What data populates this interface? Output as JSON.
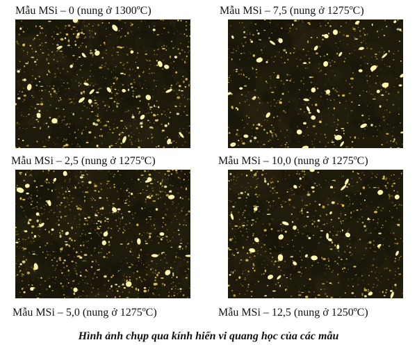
{
  "samples": [
    {
      "label": "Mẫu MSi – 0 (nung ở 1300ºC)"
    },
    {
      "label": "Mẫu MSi – 7,5 (nung ở 1275ºC)"
    },
    {
      "label": "Mẫu MSi – 2,5 (nung ở 1275ºC)"
    },
    {
      "label": "Mẫu MSi – 10,0 (nung ở 1275ºC)"
    },
    {
      "label": "Mẫu MSi – 5,0 (nung ở 1275ºC)"
    },
    {
      "label": "Mẫu MSi – 12,5 (nung ở 1250ºC)"
    }
  ],
  "caption": "Hình ảnh chụp qua kính hiển vi quang học của các mẫu",
  "colors": {
    "background": "#1d1a0c",
    "grain_bright": "#fff6b0",
    "grain_mid": "#e8c84a",
    "grain_dim": "#8a7220"
  }
}
